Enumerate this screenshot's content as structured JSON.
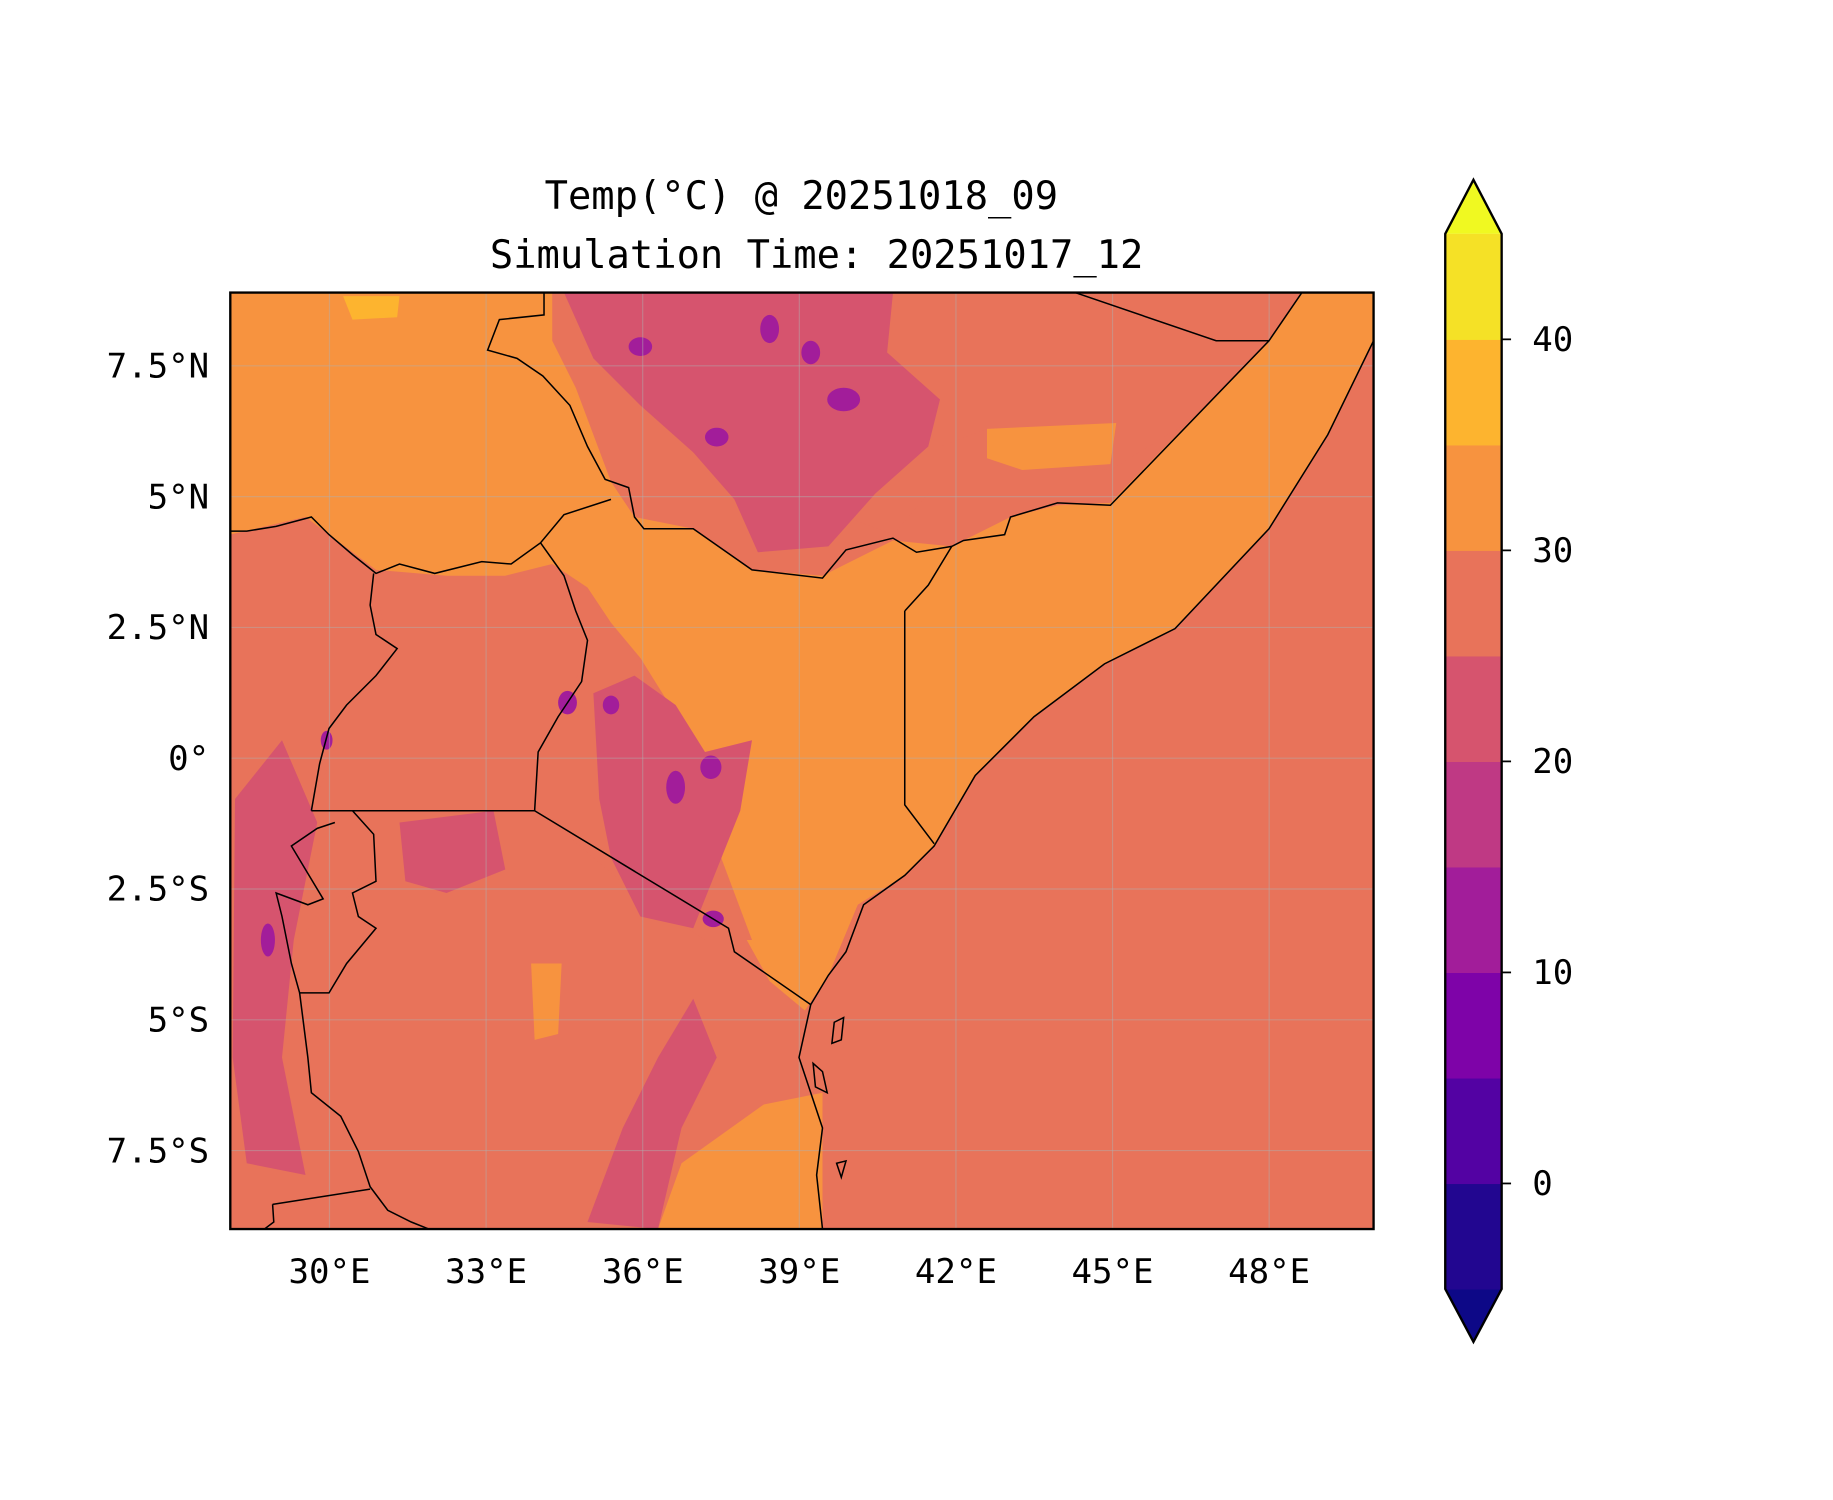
{
  "chart_data": {
    "type": "heatmap",
    "title": "Temp(°C) @ 20251018_09",
    "subtitle": "Simulation Time: 20251017_12",
    "variable": "Temp(°C)",
    "lon_range": [
      28.1,
      50.0
    ],
    "lat_range": [
      -9.0,
      8.9
    ],
    "x_ticks": [
      {
        "value": 30,
        "label": "30°E"
      },
      {
        "value": 33,
        "label": "33°E"
      },
      {
        "value": 36,
        "label": "36°E"
      },
      {
        "value": 39,
        "label": "39°E"
      },
      {
        "value": 42,
        "label": "42°E"
      },
      {
        "value": 45,
        "label": "45°E"
      },
      {
        "value": 48,
        "label": "48°E"
      }
    ],
    "y_ticks": [
      {
        "value": 7.5,
        "label": "7.5°N"
      },
      {
        "value": 5,
        "label": "5°N"
      },
      {
        "value": 2.5,
        "label": "2.5°N"
      },
      {
        "value": 0,
        "label": "0°"
      },
      {
        "value": -2.5,
        "label": "2.5°S"
      },
      {
        "value": -5,
        "label": "5°S"
      },
      {
        "value": -7.5,
        "label": "7.5°S"
      }
    ],
    "grid": true,
    "colorbar": {
      "levels": [
        -5,
        0,
        5,
        10,
        15,
        20,
        25,
        30,
        35,
        40,
        45
      ],
      "extend": "both",
      "colors": [
        "#220690",
        "#5302a3",
        "#7e03a8",
        "#a21d9a",
        "#bf3984",
        "#d6546e",
        "#e8735a",
        "#f7933f",
        "#fdb42f",
        "#f5e126"
      ],
      "under_color": "#0d0887",
      "over_color": "#f0f921",
      "ticks": [
        {
          "value": 0,
          "label": "0"
        },
        {
          "value": 10,
          "label": "10"
        },
        {
          "value": 20,
          "label": "20"
        },
        {
          "value": 30,
          "label": "30"
        },
        {
          "value": 40,
          "label": "40"
        }
      ],
      "placement": "right"
    }
  }
}
